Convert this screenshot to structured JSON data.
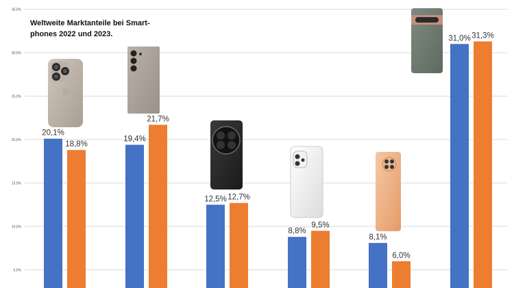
{
  "title": "Weltweite Marktanteile bei Smart-phones 2022 und 2023.",
  "title_lines": [
    "Weltweite Marktanteile bei Smart-",
    "phones 2022 und 2023."
  ],
  "colors": {
    "series_2022": "#4472c4",
    "series_2023": "#ed7d31",
    "grid": "#d9d9d9",
    "tick_text": "#555555",
    "label_text": "#333333"
  },
  "icons": [
    "iphone-titanium-icon",
    "samsung-galaxy-ultra-icon",
    "xiaomi-black-phone-icon",
    "oppo-white-phone-icon",
    "orange-phone-icon",
    "google-pixel-icon"
  ],
  "chart_data": {
    "type": "bar",
    "title": "Weltweite Marktanteile bei Smart-phones 2022 und 2023.",
    "categories": [
      "",
      "",
      "",
      "",
      "",
      ""
    ],
    "series": [
      {
        "values": [
          20.1,
          19.4,
          12.5,
          8.8,
          8.1,
          31.0
        ],
        "labels": [
          "20,1%",
          "19,4%",
          "12,5%",
          "8,8%",
          "8,1%",
          "31,0%"
        ],
        "color": "#4472c4"
      },
      {
        "values": [
          18.8,
          21.7,
          12.7,
          9.5,
          6.0,
          31.3
        ],
        "labels": [
          "18,8%",
          "21,7%",
          "12,7%",
          "9,5%",
          "6,0%",
          "31,3%"
        ],
        "color": "#ed7d31"
      }
    ],
    "yticks": [
      "5,0%",
      "10,0%",
      "15,0%",
      "20,0%",
      "25,0%",
      "30,0%",
      "35,0%"
    ],
    "ylim": [
      3.0,
      35.0
    ],
    "grid": true,
    "legend": "none",
    "xlabel": "",
    "ylabel": ""
  }
}
